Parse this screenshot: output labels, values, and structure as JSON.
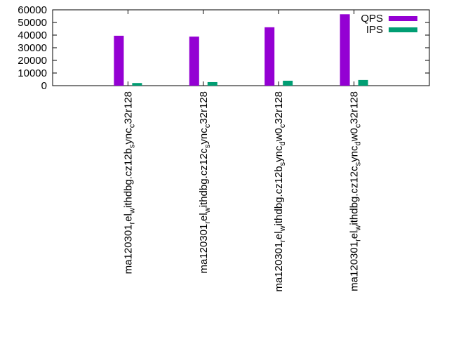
{
  "chart_data": {
    "type": "bar",
    "title": "",
    "xlabel": "",
    "ylabel": "",
    "ylim": [
      0,
      60000
    ],
    "yticks": [
      0,
      10000,
      20000,
      30000,
      40000,
      50000,
      60000
    ],
    "ytick_labels": [
      "0",
      "10000",
      "20000",
      "30000",
      "40000",
      "50000",
      "60000"
    ],
    "grid": false,
    "legend_position": "top-right",
    "categories": [
      {
        "pre": "ma120301",
        "segments": [
          {
            "sub": "r"
          },
          {
            "t": "el"
          },
          {
            "sub": "w"
          },
          {
            "t": "ithdbg.cz12b"
          },
          {
            "sub": "s"
          },
          {
            "t": "ync"
          },
          {
            "sub": "c"
          },
          {
            "t": "32r128"
          }
        ]
      },
      {
        "pre": "ma120301",
        "segments": [
          {
            "sub": "r"
          },
          {
            "t": "el"
          },
          {
            "sub": "w"
          },
          {
            "t": "ithdbg.cz12c"
          },
          {
            "sub": "s"
          },
          {
            "t": "ync"
          },
          {
            "sub": "c"
          },
          {
            "t": "32r128"
          }
        ]
      },
      {
        "pre": "ma120301",
        "segments": [
          {
            "sub": "r"
          },
          {
            "t": "el"
          },
          {
            "sub": "w"
          },
          {
            "t": "ithdbg.cz12b"
          },
          {
            "sub": "s"
          },
          {
            "t": "ync"
          },
          {
            "sub": "d"
          },
          {
            "t": "w0"
          },
          {
            "sub": "c"
          },
          {
            "t": "32r128"
          }
        ]
      },
      {
        "pre": "ma120301",
        "segments": [
          {
            "sub": "r"
          },
          {
            "t": "el"
          },
          {
            "sub": "w"
          },
          {
            "t": "ithdbg.cz12c"
          },
          {
            "sub": "s"
          },
          {
            "t": "ync"
          },
          {
            "sub": "d"
          },
          {
            "t": "w0"
          },
          {
            "sub": "c"
          },
          {
            "t": "32r128"
          }
        ]
      }
    ],
    "series": [
      {
        "name": "QPS",
        "color": "#9400d3",
        "values": [
          39500,
          38800,
          46200,
          56500
        ]
      },
      {
        "name": "IPS",
        "color": "#009e73",
        "values": [
          2100,
          2800,
          3900,
          4500
        ]
      }
    ]
  }
}
